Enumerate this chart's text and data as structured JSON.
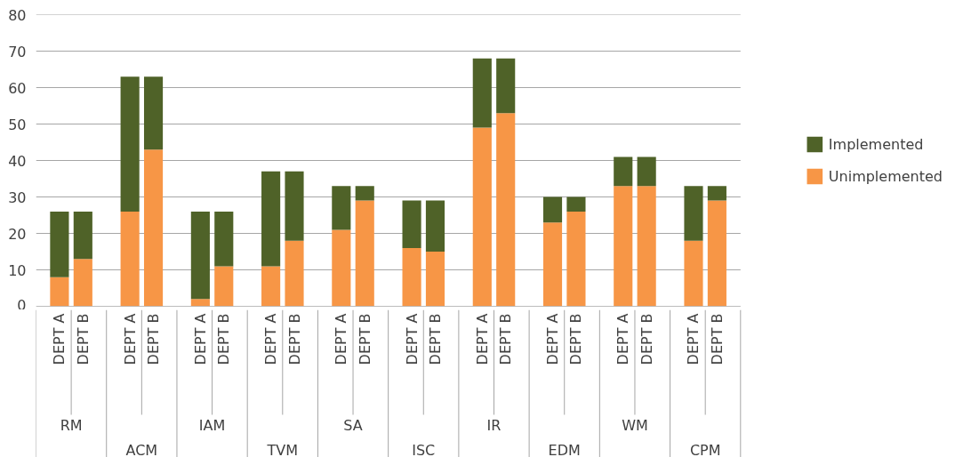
{
  "chart_data": {
    "type": "bar",
    "stacked": true,
    "categories": [
      "DEPT A",
      "DEPT B",
      "DEPT A",
      "DEPT B",
      "DEPT A",
      "DEPT B",
      "DEPT A",
      "DEPT B",
      "DEPT A",
      "DEPT B",
      "DEPT A",
      "DEPT B",
      "DEPT A",
      "DEPT B",
      "DEPT A",
      "DEPT B",
      "DEPT A",
      "DEPT B",
      "DEPT A",
      "DEPT B"
    ],
    "annotations": [
      "RM",
      "ACM",
      "IAM",
      "TVM",
      "SA",
      "ISC",
      "IR",
      "EDM",
      "WM",
      "CPM"
    ],
    "series": [
      {
        "name": "Unimplemented",
        "color": "#f79646",
        "values": [
          8,
          13,
          26,
          43,
          2,
          11,
          11,
          18,
          21,
          29,
          16,
          15,
          49,
          53,
          23,
          26,
          33,
          33,
          18,
          29
        ]
      },
      {
        "name": "Implemented",
        "color": "#4f6228",
        "values": [
          18,
          13,
          37,
          20,
          24,
          15,
          26,
          19,
          12,
          4,
          13,
          14,
          19,
          15,
          7,
          4,
          8,
          8,
          15,
          4
        ]
      }
    ],
    "ylim": [
      0,
      80
    ],
    "yticks": [
      0,
      10,
      20,
      30,
      40,
      50,
      60,
      70,
      80
    ],
    "grid": "y",
    "legend": "right"
  }
}
